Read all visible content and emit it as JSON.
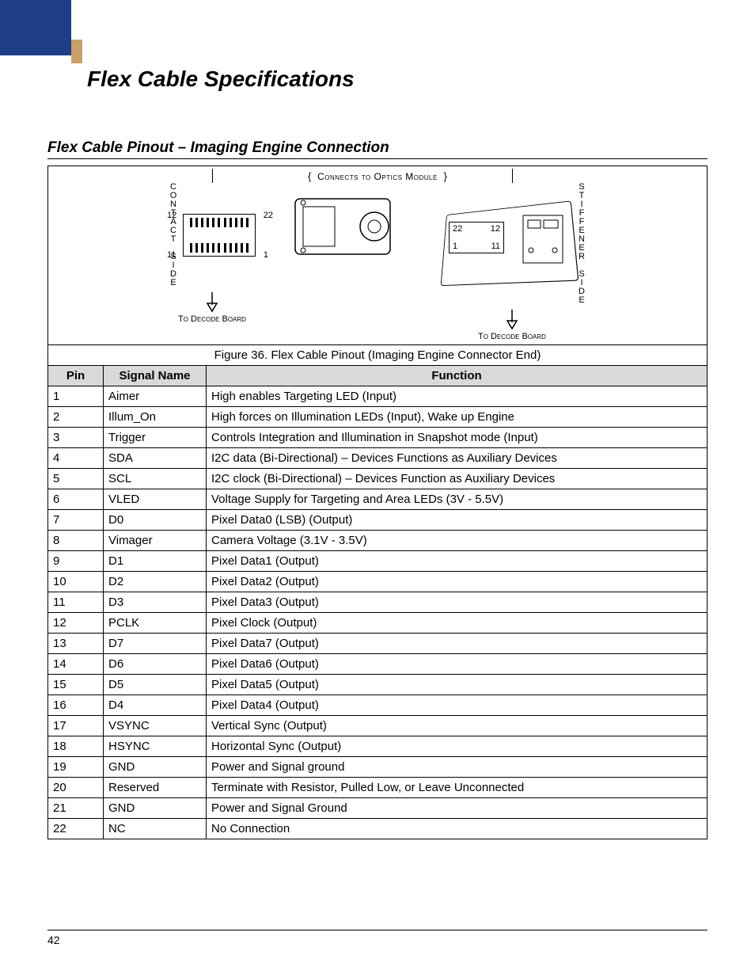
{
  "page_number": "42",
  "title": "Flex Cable Specifications",
  "subtitle": "Flex Cable Pinout – Imaging Engine Connection",
  "figure": {
    "caption": "Figure 36. Flex Cable Pinout (Imaging Engine Connector End)",
    "connects_label": "Connects to Optics Module",
    "contact_side": "CONTACT SIDE",
    "stiffener_side": "STIFFENER SIDE",
    "to_decode": "To Decode Board",
    "pins": {
      "p1": "1",
      "p11": "11",
      "p12": "12",
      "p22": "22"
    }
  },
  "table": {
    "headers": {
      "pin": "Pin",
      "signal": "Signal Name",
      "func": "Function"
    },
    "rows": [
      {
        "pin": "1",
        "signal": "Aimer",
        "func": "High enables Targeting LED (Input)"
      },
      {
        "pin": "2",
        "signal": "Illum_On",
        "func": "High forces on Illumination LEDs (Input), Wake up Engine"
      },
      {
        "pin": "3",
        "signal": "Trigger",
        "func": "Controls Integration and Illumination in Snapshot mode (Input)"
      },
      {
        "pin": "4",
        "signal": "SDA",
        "func": "I2C data (Bi-Directional) – Devices Functions as Auxiliary  Devices"
      },
      {
        "pin": "5",
        "signal": "SCL",
        "func": "I2C clock (Bi-Directional) – Devices Function as Auxiliary Devices"
      },
      {
        "pin": "6",
        "signal": "VLED",
        "func": "Voltage Supply for Targeting and Area LEDs (3V - 5.5V)"
      },
      {
        "pin": "7",
        "signal": "D0",
        "func": "Pixel Data0 (LSB) (Output)"
      },
      {
        "pin": "8",
        "signal": "Vimager",
        "func": "Camera Voltage (3.1V - 3.5V)"
      },
      {
        "pin": "9",
        "signal": "D1",
        "func": "Pixel Data1 (Output)"
      },
      {
        "pin": "10",
        "signal": "D2",
        "func": "Pixel Data2 (Output)"
      },
      {
        "pin": "11",
        "signal": "D3",
        "func": "Pixel Data3 (Output)"
      },
      {
        "pin": "12",
        "signal": "PCLK",
        "func": "Pixel Clock (Output)"
      },
      {
        "pin": "13",
        "signal": "D7",
        "func": "Pixel Data7 (Output)"
      },
      {
        "pin": "14",
        "signal": "D6",
        "func": "Pixel Data6 (Output)"
      },
      {
        "pin": "15",
        "signal": "D5",
        "func": "Pixel Data5 (Output)"
      },
      {
        "pin": "16",
        "signal": "D4",
        "func": "Pixel Data4 (Output)"
      },
      {
        "pin": "17",
        "signal": "VSYNC",
        "func": "Vertical Sync (Output)"
      },
      {
        "pin": "18",
        "signal": "HSYNC",
        "func": "Horizontal Sync (Output)"
      },
      {
        "pin": "19",
        "signal": "GND",
        "func": "Power and Signal ground"
      },
      {
        "pin": "20",
        "signal": "Reserved",
        "func": "Terminate with Resistor, Pulled Low, or Leave Unconnected"
      },
      {
        "pin": "21",
        "signal": "GND",
        "func": "Power and Signal Ground"
      },
      {
        "pin": "22",
        "signal": "NC",
        "func": "No Connection"
      }
    ]
  },
  "colors": {
    "corner_blue": "#1f3e8a",
    "corner_tan": "#c9a06a",
    "header_bg": "#d9d9d9",
    "border": "#000000",
    "text": "#000000",
    "background": "#ffffff"
  }
}
